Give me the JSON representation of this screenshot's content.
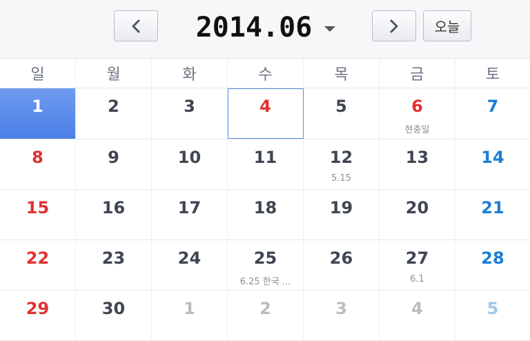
{
  "header": {
    "title": "2014.06",
    "today_label": "오늘",
    "prev_icon": "chevron-left-icon",
    "next_icon": "chevron-right-icon",
    "dropdown_icon": "caret-down-icon"
  },
  "weekdays": [
    "일",
    "월",
    "화",
    "수",
    "목",
    "금",
    "토"
  ],
  "colors": {
    "sunday": "#e03131",
    "saturday": "#1c7ed6",
    "selected": "#4a7fe6",
    "today_border": "#5a8ed8"
  },
  "weeks": [
    [
      {
        "day": "1",
        "selected": true
      },
      {
        "day": "2"
      },
      {
        "day": "3"
      },
      {
        "day": "4",
        "today": true,
        "holiday": true
      },
      {
        "day": "5"
      },
      {
        "day": "6",
        "holiday": true,
        "note": "현충일"
      },
      {
        "day": "7"
      }
    ],
    [
      {
        "day": "8"
      },
      {
        "day": "9"
      },
      {
        "day": "10"
      },
      {
        "day": "11"
      },
      {
        "day": "12",
        "note": "5.15"
      },
      {
        "day": "13"
      },
      {
        "day": "14"
      }
    ],
    [
      {
        "day": "15"
      },
      {
        "day": "16"
      },
      {
        "day": "17"
      },
      {
        "day": "18"
      },
      {
        "day": "19"
      },
      {
        "day": "20"
      },
      {
        "day": "21"
      }
    ],
    [
      {
        "day": "22"
      },
      {
        "day": "23"
      },
      {
        "day": "24"
      },
      {
        "day": "25",
        "note": "6.25 한국 ..."
      },
      {
        "day": "26"
      },
      {
        "day": "27",
        "note": "6.1"
      },
      {
        "day": "28"
      }
    ],
    [
      {
        "day": "29"
      },
      {
        "day": "30"
      },
      {
        "day": "1",
        "other": true
      },
      {
        "day": "2",
        "other": true
      },
      {
        "day": "3",
        "other": true
      },
      {
        "day": "4",
        "other": true
      },
      {
        "day": "5",
        "other": true
      }
    ]
  ]
}
